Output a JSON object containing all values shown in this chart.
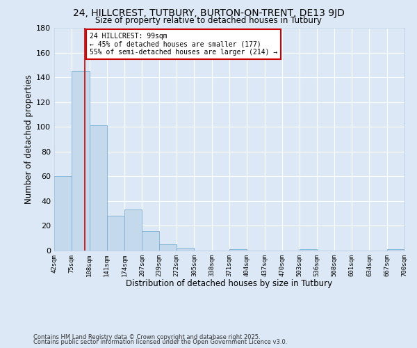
{
  "title": "24, HILLCREST, TUTBURY, BURTON-ON-TRENT, DE13 9JD",
  "subtitle": "Size of property relative to detached houses in Tutbury",
  "xlabel": "Distribution of detached houses by size in Tutbury",
  "ylabel": "Number of detached properties",
  "bin_edges": [
    42,
    75,
    108,
    141,
    174,
    207,
    239,
    272,
    305,
    338,
    371,
    404,
    437,
    470,
    503,
    536,
    568,
    601,
    634,
    667,
    700
  ],
  "counts": [
    60,
    145,
    101,
    28,
    33,
    16,
    5,
    2,
    0,
    0,
    1,
    0,
    0,
    0,
    1,
    0,
    0,
    0,
    0,
    1
  ],
  "bar_color": "#c5d9ed",
  "bar_edge_color": "#7bafd4",
  "vline_x": 99,
  "vline_color": "#cc0000",
  "annotation_title": "24 HILLCREST: 99sqm",
  "annotation_line1": "← 45% of detached houses are smaller (177)",
  "annotation_line2": "55% of semi-detached houses are larger (214) →",
  "annotation_box_color": "#ffffff",
  "annotation_box_edge": "#cc0000",
  "tick_labels": [
    "42sqm",
    "75sqm",
    "108sqm",
    "141sqm",
    "174sqm",
    "207sqm",
    "239sqm",
    "272sqm",
    "305sqm",
    "338sqm",
    "371sqm",
    "404sqm",
    "437sqm",
    "470sqm",
    "503sqm",
    "536sqm",
    "568sqm",
    "601sqm",
    "634sqm",
    "667sqm",
    "700sqm"
  ],
  "ylim": [
    0,
    180
  ],
  "yticks": [
    0,
    20,
    40,
    60,
    80,
    100,
    120,
    140,
    160,
    180
  ],
  "background_color": "#dce8f5",
  "plot_bg_color": "#dce8f5",
  "grid_color": "#ffffff",
  "footer1": "Contains HM Land Registry data © Crown copyright and database right 2025.",
  "footer2": "Contains public sector information licensed under the Open Government Licence v3.0."
}
